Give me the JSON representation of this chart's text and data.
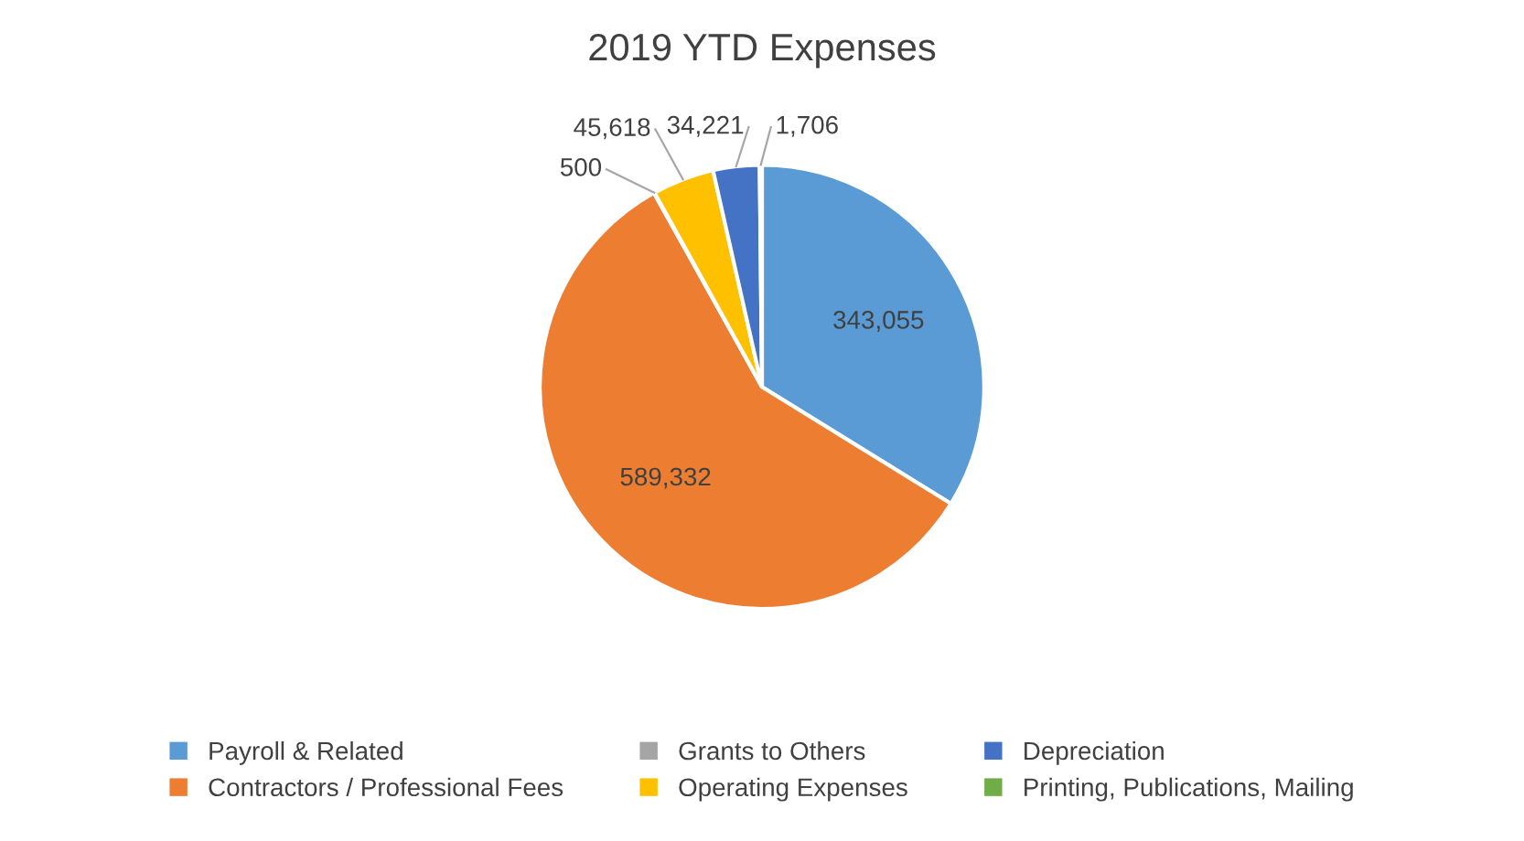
{
  "chart_data": {
    "type": "pie",
    "title": "2019 YTD Expenses",
    "categories": [
      "Payroll & Related",
      "Contractors / Professional Fees",
      "Grants to Others",
      "Operating Expenses",
      "Depreciation",
      "Printing, Publications, Mailing"
    ],
    "values": [
      343055,
      589332,
      500,
      45618,
      34221,
      1706
    ],
    "colors": [
      "#5b9bd5",
      "#ed7d31",
      "#a5a5a5",
      "#ffc000",
      "#4472c4",
      "#70ad47"
    ],
    "value_labels": [
      "343,055",
      "589,332",
      "500",
      "45,618",
      "34,221",
      "1,706"
    ],
    "legend": "bottom"
  }
}
